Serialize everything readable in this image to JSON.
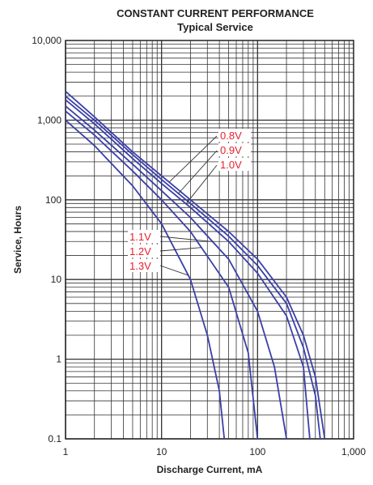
{
  "chart_data": {
    "type": "line",
    "title": "CONSTANT CURRENT PERFORMANCE",
    "subtitle": "Typical Service",
    "xlabel": "Discharge Current, mA",
    "ylabel": "Service, Hours",
    "x_scale": "log",
    "y_scale": "log",
    "xlim": [
      1,
      1000
    ],
    "ylim": [
      0.1,
      10000
    ],
    "x_ticks": [
      "1",
      "10",
      "100",
      "1,000"
    ],
    "y_ticks": [
      "0.1",
      "1",
      "10",
      "100",
      "1,000",
      "10,000"
    ],
    "grid": true,
    "line_color": "#3a3fa8",
    "label_color": "#e8202a",
    "series": [
      {
        "name": "0.8V",
        "x": [
          1,
          2,
          5,
          10,
          20,
          50,
          100,
          200,
          300,
          400,
          500
        ],
        "y": [
          2300,
          1100,
          400,
          200,
          100,
          40,
          18,
          6,
          2,
          0.6,
          0.1
        ]
      },
      {
        "name": "0.9V",
        "x": [
          1,
          2,
          5,
          10,
          20,
          50,
          100,
          200,
          300,
          400,
          450
        ],
        "y": [
          2000,
          1000,
          370,
          180,
          90,
          35,
          15,
          5,
          1.4,
          0.35,
          0.1
        ]
      },
      {
        "name": "1.0V",
        "x": [
          1,
          2,
          5,
          10,
          20,
          50,
          100,
          200,
          300,
          350
        ],
        "y": [
          1800,
          900,
          330,
          160,
          80,
          30,
          12,
          3.5,
          0.8,
          0.1
        ]
      },
      {
        "name": "1.1V",
        "x": [
          1,
          2,
          5,
          10,
          20,
          50,
          100,
          150,
          200
        ],
        "y": [
          1500,
          750,
          280,
          130,
          60,
          18,
          4,
          0.8,
          0.1
        ]
      },
      {
        "name": "1.2V",
        "x": [
          1,
          2,
          5,
          10,
          20,
          50,
          80,
          100
        ],
        "y": [
          1300,
          650,
          230,
          100,
          40,
          8,
          1.2,
          0.1
        ]
      },
      {
        "name": "1.3V",
        "x": [
          1,
          2,
          5,
          10,
          20,
          30,
          40,
          45
        ],
        "y": [
          1000,
          480,
          150,
          50,
          10,
          2,
          0.4,
          0.1
        ]
      }
    ],
    "upper_label_series": [
      "0.8V",
      "0.9V",
      "1.0V"
    ],
    "lower_label_series": [
      "1.1V",
      "1.2V",
      "1.3V"
    ]
  }
}
